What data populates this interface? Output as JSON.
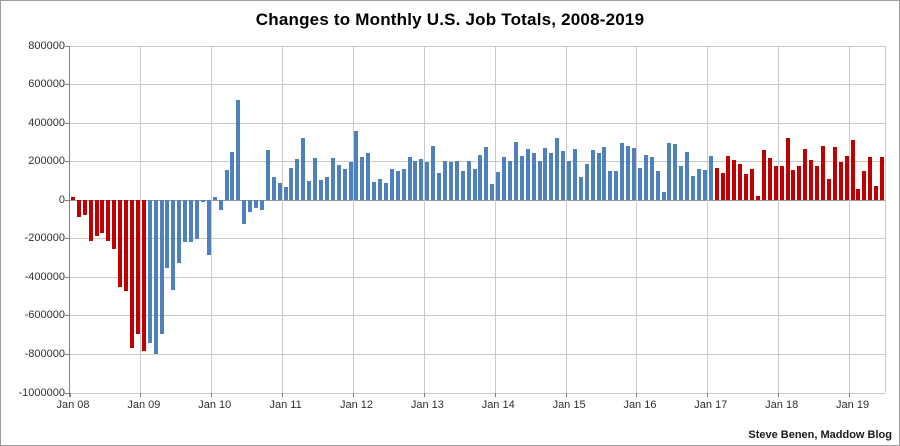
{
  "title": "Changes to Monthly U.S. Job Totals, 2008-2019",
  "attribution": "Steve Benen, Maddow Blog",
  "chart_data": {
    "type": "bar",
    "title": "Changes to Monthly U.S. Job Totals, 2008-2019",
    "xlabel": "",
    "ylabel": "",
    "unit": "net change in U.S. jobs per month",
    "x_start": "Jan 2008",
    "x_end": "Jun 2019",
    "ylim": [
      -1000000,
      800000
    ],
    "grid": true,
    "legend": "none",
    "y_ticks": [
      800000,
      600000,
      400000,
      200000,
      0,
      -200000,
      -400000,
      -600000,
      -800000,
      -1000000
    ],
    "x_tick_labels": [
      "Jan 08",
      "Jan 09",
      "Jan 10",
      "Jan 11",
      "Jan 12",
      "Jan 13",
      "Jan 14",
      "Jan 15",
      "Jan 16",
      "Jan 17",
      "Jan 18",
      "Jan 19"
    ],
    "bar_colors": {
      "red": "#c00000",
      "blue": "#4f81bd"
    },
    "segments": [
      {
        "from_index": 0,
        "to_index": 12,
        "color": "red",
        "label": "Jan 2008 - Jan 2009"
      },
      {
        "from_index": 13,
        "to_index": 108,
        "color": "blue",
        "label": "Feb 2009 - Jan 2017"
      },
      {
        "from_index": 109,
        "to_index": 137,
        "color": "red",
        "label": "Feb 2017 - Jun 2019"
      }
    ],
    "values_by_year": {
      "2008": [
        15000,
        -86000,
        -78000,
        -210000,
        -185000,
        -169000,
        -210000,
        -255000,
        -452000,
        -473000,
        -769000,
        -695000
      ],
      "2009": [
        -783000,
        -743000,
        -800000,
        -695000,
        -354000,
        -467000,
        -327000,
        -216000,
        -219000,
        -200000,
        -7000,
        -283000
      ],
      "2010": [
        18000,
        -50000,
        156000,
        251000,
        522000,
        -122000,
        -61000,
        -42000,
        -52000,
        260000,
        123000,
        88000
      ],
      "2011": [
        70000,
        168000,
        212000,
        322000,
        102000,
        217000,
        106000,
        122000,
        221000,
        183000,
        164000,
        196000
      ],
      "2012": [
        360000,
        226000,
        243000,
        96000,
        110000,
        88000,
        160000,
        150000,
        161000,
        225000,
        203000,
        214000
      ],
      "2013": [
        197000,
        280000,
        141000,
        203000,
        199000,
        201000,
        149000,
        202000,
        164000,
        237000,
        274000,
        84000
      ],
      "2014": [
        144000,
        222000,
        203000,
        304000,
        229000,
        267000,
        243000,
        203000,
        271000,
        243000,
        321000,
        256000
      ],
      "2015": [
        201000,
        266000,
        119000,
        187000,
        260000,
        245000,
        277000,
        150000,
        149000,
        295000,
        280000,
        271000
      ],
      "2016": [
        168000,
        233000,
        225000,
        153000,
        43000,
        297000,
        291000,
        176000,
        249000,
        124000,
        164000,
        155000
      ],
      "2017": [
        227000,
        165000,
        140000,
        228000,
        207000,
        186000,
        138000,
        160000,
        23000,
        260000,
        220000,
        175000
      ],
      "2018": [
        176000,
        324000,
        155000,
        175000,
        268000,
        208000,
        178000,
        282000,
        108000,
        277000,
        196000,
        227000
      ],
      "2019": [
        312000,
        56000,
        153000,
        224000,
        72000,
        224000
      ]
    }
  }
}
